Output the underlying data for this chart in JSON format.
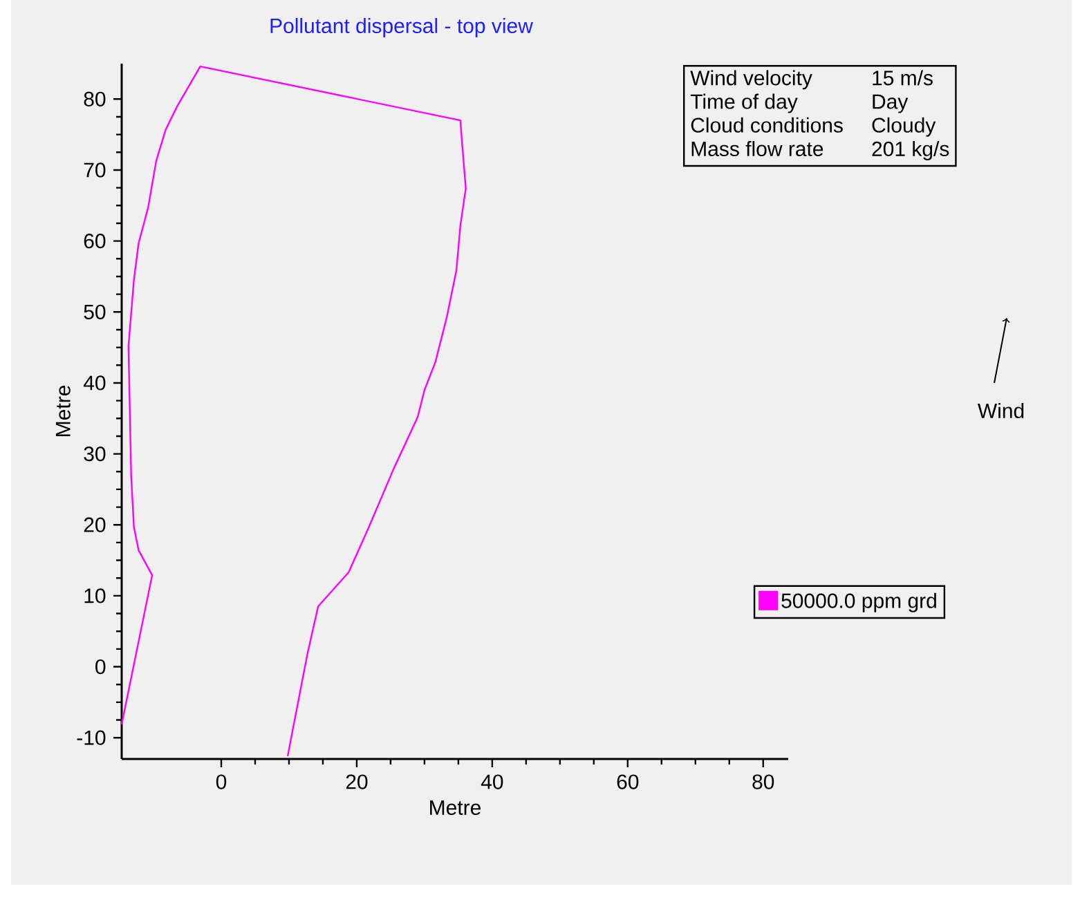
{
  "chart_data": {
    "type": "line",
    "title": "Pollutant dispersal - top view",
    "xlabel": "Metre",
    "ylabel": "Metre",
    "series": [
      {
        "name": "50000.0 ppm grd",
        "color": "#ff00ff",
        "x": [
          -14.7,
          -10.2,
          -12.2,
          -12.9,
          -13.3,
          -13.7,
          -12.9,
          -12.2,
          -10.8,
          -9.6,
          -8.2,
          -6.5,
          -3.1,
          35.3,
          35.5,
          36.1,
          35.3,
          34.7,
          33.3,
          31.6,
          30.0,
          29.0,
          25.5,
          21.8,
          18.8,
          14.3,
          12.7,
          9.8
        ],
        "values": [
          -8.1,
          12.9,
          16.4,
          19.7,
          26.9,
          45.2,
          54.5,
          59.7,
          64.7,
          71.3,
          75.7,
          79.0,
          84.6,
          77.0,
          74.4,
          67.4,
          62.2,
          55.8,
          49.3,
          42.9,
          39.0,
          35.2,
          28.0,
          19.7,
          13.3,
          8.5,
          1.7,
          -12.6
        ]
      }
    ],
    "xlim": [
      -14.7,
      83.7
    ],
    "ylim": [
      -13,
      85
    ],
    "xticks": [
      0,
      20,
      40,
      60,
      80
    ],
    "yticks": [
      -10,
      0,
      10,
      20,
      30,
      40,
      50,
      60,
      70,
      80
    ],
    "grid": false,
    "legend": "right",
    "marker": "none",
    "line_style": "solid",
    "annotations": [
      "Wind velocity",
      "15 m/s",
      "Time of day",
      "Day",
      "Cloud conditions",
      "Cloudy",
      "Mass flow rate",
      "201 kg/s",
      "Wind"
    ]
  }
}
